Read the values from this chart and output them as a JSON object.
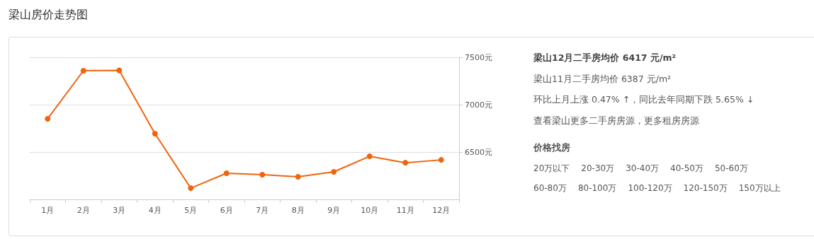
{
  "chart_data": {
    "type": "line",
    "title": "梁山房价走势图",
    "categories": [
      "1月",
      "2月",
      "3月",
      "4月",
      "5月",
      "6月",
      "7月",
      "8月",
      "9月",
      "10月",
      "11月",
      "12月"
    ],
    "series": [
      {
        "color": "#f0640f",
        "values": [
          6851,
          7358,
          7362,
          6694,
          6119,
          6276,
          6261,
          6239,
          6291,
          6455,
          6387,
          6417
        ]
      }
    ],
    "ylim": [
      6000,
      7500
    ],
    "yticks": [
      {
        "value": 6500,
        "label": "6500元"
      },
      {
        "value": 7000,
        "label": "7000元"
      },
      {
        "value": 7500,
        "label": "7500元"
      }
    ],
    "grid": "y",
    "marker": "circle",
    "line_style": "solid",
    "annotations": [
      "梁山12月二手房均价 6417 元/m²",
      "梁山11月二手房均价 6387 元/m²",
      "环比上月上涨 0.47% ↑，同比去年同期下跌 5.65% ↓",
      "查看梁山更多二手房房源，更多租房房源",
      "价格找房",
      "20万以下",
      "20-30万",
      "30-40万",
      "40-50万",
      "50-60万",
      "60-80万",
      "80-100万",
      "100-120万",
      "120-150万",
      "150万以上"
    ]
  }
}
